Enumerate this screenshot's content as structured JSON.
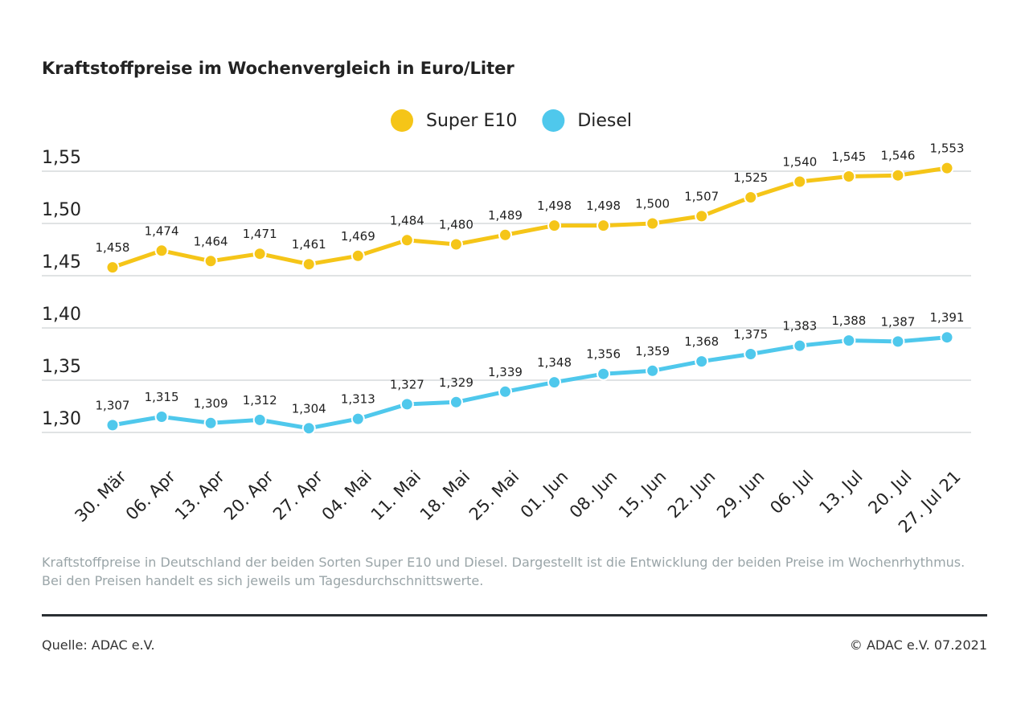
{
  "chart_data": {
    "type": "line",
    "title": "Kraftstoffpreise im Wochenvergleich in Euro/Liter",
    "categories": [
      "30. Mär",
      "06. Apr",
      "13. Apr",
      "20. Apr",
      "27. Apr",
      "04. Mai",
      "11. Mai",
      "18. Mai",
      "25. Mai",
      "01. Jun",
      "08. Jun",
      "15. Jun",
      "22. Jun",
      "29. Jun",
      "06. Jul",
      "13. Jul",
      "20. Jul",
      "27. Jul 21"
    ],
    "series": [
      {
        "name": "Super E10",
        "color": "#f5c518",
        "values": [
          1.458,
          1.474,
          1.464,
          1.471,
          1.461,
          1.469,
          1.484,
          1.48,
          1.489,
          1.498,
          1.498,
          1.5,
          1.507,
          1.525,
          1.54,
          1.545,
          1.546,
          1.553
        ],
        "value_labels": [
          "1,458",
          "1,474",
          "1,464",
          "1,471",
          "1,461",
          "1,469",
          "1,484",
          "1,480",
          "1,489",
          "1,498",
          "1,498",
          "1,500",
          "1,507",
          "1,525",
          "1,540",
          "1,545",
          "1,546",
          "1,553"
        ]
      },
      {
        "name": "Diesel",
        "color": "#4fc8ec",
        "values": [
          1.307,
          1.315,
          1.309,
          1.312,
          1.304,
          1.313,
          1.327,
          1.329,
          1.339,
          1.348,
          1.356,
          1.359,
          1.368,
          1.375,
          1.383,
          1.388,
          1.387,
          1.391
        ],
        "value_labels": [
          "1,307",
          "1,315",
          "1,309",
          "1,312",
          "1,304",
          "1,313",
          "1,327",
          "1,329",
          "1,339",
          "1,348",
          "1,356",
          "1,359",
          "1,368",
          "1,375",
          "1,383",
          "1,388",
          "1,387",
          "1,391"
        ]
      }
    ],
    "ylim": [
      1.3,
      1.55
    ],
    "yticks": [
      {
        "value": 1.3,
        "label": "1,30"
      },
      {
        "value": 1.35,
        "label": "1,35"
      },
      {
        "value": 1.4,
        "label": "1,40"
      },
      {
        "value": 1.45,
        "label": "1,45"
      },
      {
        "value": 1.5,
        "label": "1,50"
      },
      {
        "value": 1.55,
        "label": "1,55"
      }
    ],
    "grid": true,
    "legend": "top",
    "note": "Kraftstoffpreise in Deutschland der beiden Sorten Super E10 und Diesel. Dargestellt ist die Entwicklung der beiden Preise im Wochenrhythmus. Bei den Preisen handelt es sich jeweils um Tagesdurchschnittswerte.",
    "source": "Quelle: ADAC e.V.",
    "copyright": "© ADAC e.V. 07.2021"
  }
}
